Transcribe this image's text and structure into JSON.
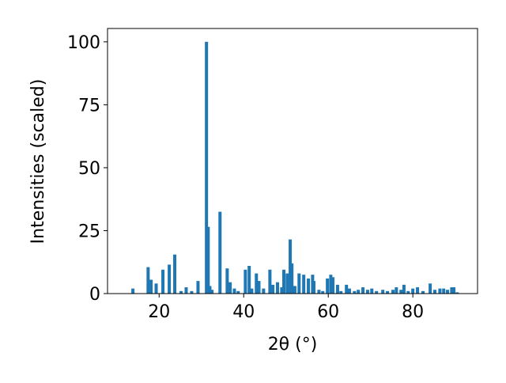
{
  "chart_data": {
    "type": "bar",
    "xlabel": "2θ (°)",
    "ylabel": "Intensities (scaled)",
    "color": "#1f77b4",
    "x": [
      13.8,
      17.4,
      18.1,
      19.3,
      20.9,
      22.4,
      23.7,
      25.2,
      26.4,
      27.7,
      29.2,
      31.2,
      31.6,
      32.0,
      32.5,
      34.4,
      36.1,
      36.8,
      37.8,
      38.7,
      40.4,
      41.3,
      41.9,
      43.0,
      43.6,
      44.7,
      46.2,
      46.9,
      48.0,
      49.0,
      49.5,
      50.3,
      51.0,
      51.4,
      52.1,
      53.1,
      54.2,
      55.3,
      56.3,
      56.6,
      57.8,
      58.7,
      59.8,
      60.6,
      61.1,
      62.2,
      63.0,
      64.3,
      65.0,
      66.2,
      67.1,
      68.2,
      69.3,
      70.3,
      71.4,
      72.9,
      74.0,
      75.3,
      76.1,
      77.2,
      77.9,
      78.9,
      80.0,
      81.1,
      82.4,
      84.1,
      85.2,
      86.4,
      87.3,
      88.2,
      89.2,
      89.7,
      90.5
    ],
    "values": [
      2,
      10.5,
      5.5,
      4,
      9.5,
      11.5,
      15.5,
      1,
      2.5,
      1,
      5,
      100,
      26.5,
      3,
      1.5,
      32.5,
      10,
      4.5,
      2,
      1,
      9.5,
      11,
      2,
      8,
      5,
      2,
      9.5,
      3.5,
      4.5,
      2.5,
      9.5,
      8,
      21.5,
      12,
      3,
      8,
      7.5,
      6,
      7.5,
      5,
      1.5,
      1,
      6,
      7.5,
      6.5,
      3.5,
      1,
      3.5,
      2,
      1,
      1.5,
      2.5,
      1.5,
      2,
      1,
      1.5,
      1,
      1.5,
      2.5,
      1.5,
      3.5,
      1,
      2,
      2.5,
      1,
      4,
      1.5,
      2,
      2,
      1.5,
      2.5,
      2.5,
      0.5
    ],
    "xlim": [
      7.8,
      95.3
    ],
    "ylim": [
      0,
      105.3
    ],
    "xticks": [
      20,
      40,
      60,
      80
    ],
    "yticks": [
      0,
      25,
      50,
      75,
      100
    ]
  }
}
